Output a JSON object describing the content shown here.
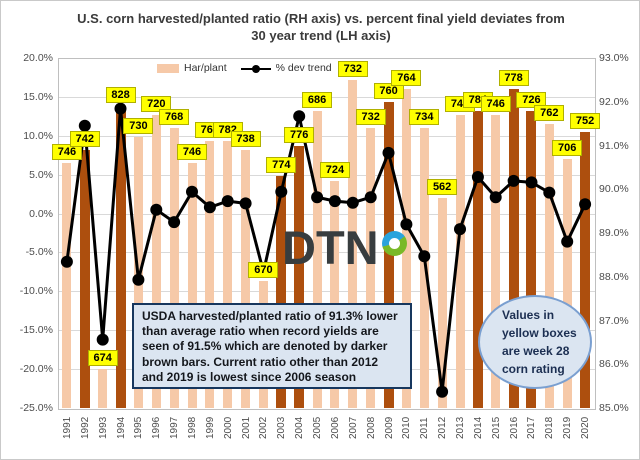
{
  "title": {
    "line1": "U.S. corn harvested/planted ratio (RH axis) vs. percent final yield deviates from",
    "line2": "30 year trend (LH axis)"
  },
  "legend": {
    "bar_label": "Har/plant",
    "line_label": "% dev trend"
  },
  "annotations": {
    "note_box": "USDA harvested/planted ratio of 91.3% lower than average ratio when record yields are seen of 91.5% which are denoted by darker brown bars. Current ratio other than 2012 and 2019 is lowest since 2006 season",
    "ellipse_note": "Values in yellow boxes are week 28 corn rating",
    "logo_text": "DTN",
    "logo_ring_icon": "dtn-degree-ring"
  },
  "colors": {
    "bar_light": "#f6c9a8",
    "bar_dark": "#ad4f0e",
    "line": "#000000",
    "rating_label_bg": "#ffff00",
    "rating_label_border": "#b0b000",
    "note_fill": "#dbe5f1",
    "note_border": "#17375e",
    "ellipse_border": "#7a9fd0",
    "gridline": "#d9d9d9",
    "logo_blue": "#2aa3dc",
    "logo_green": "#79b928"
  },
  "chart_data": {
    "type": "bar+line combo",
    "categories": [
      1991,
      1992,
      1993,
      1994,
      1995,
      1996,
      1997,
      1998,
      1999,
      2000,
      2001,
      2002,
      2003,
      2004,
      2005,
      2006,
      2007,
      2008,
      2009,
      2010,
      2011,
      2012,
      2013,
      2014,
      2015,
      2016,
      2017,
      2018,
      2019,
      2020
    ],
    "series": [
      {
        "name": "Har/plant",
        "type": "bar",
        "axis": "right",
        "unit": "%",
        "values": [
          90.6,
          90.9,
          85.9,
          91.9,
          91.2,
          91.7,
          91.4,
          90.6,
          91.1,
          91.1,
          90.9,
          87.9,
          90.3,
          91.0,
          91.8,
          90.2,
          92.5,
          91.4,
          92.0,
          92.3,
          91.4,
          89.8,
          91.7,
          91.8,
          91.7,
          92.3,
          91.8,
          91.5,
          90.7,
          91.3
        ],
        "record_yield_years": [
          1992,
          1994,
          2003,
          2004,
          2009,
          2014,
          2016,
          2017,
          2020
        ]
      },
      {
        "name": "% dev trend",
        "type": "line",
        "axis": "left",
        "unit": "%",
        "values": [
          -6.2,
          11.3,
          -16.2,
          13.5,
          -8.5,
          0.5,
          -1.1,
          2.8,
          0.8,
          1.6,
          1.3,
          -7.5,
          2.8,
          12.5,
          2.1,
          1.6,
          1.4,
          2.1,
          7.8,
          -1.4,
          -5.5,
          -22.9,
          -2.0,
          4.7,
          2.1,
          4.2,
          4.0,
          2.7,
          -3.6,
          1.2
        ]
      }
    ],
    "point_labels": {
      "name": "week 28 corn rating",
      "values": [
        746,
        742,
        674,
        828,
        730,
        720,
        768,
        746,
        766,
        782,
        738,
        670,
        774,
        776,
        686,
        724,
        732,
        732,
        760,
        764,
        734,
        562,
        742,
        784,
        746,
        778,
        726,
        762,
        706,
        752
      ]
    },
    "left_axis": {
      "min": -25,
      "max": 20,
      "ticks": [
        "20.0%",
        "15.0%",
        "10.0%",
        "5.0%",
        "0.0%",
        "-5.0%",
        "-10.0%",
        "-15.0%",
        "-20.0%",
        "-25.0%"
      ]
    },
    "right_axis": {
      "min": 85,
      "max": 93,
      "ticks": [
        "93.0%",
        "92.0%",
        "91.0%",
        "90.0%",
        "89.0%",
        "88.0%",
        "87.0%",
        "86.0%",
        "85.0%"
      ]
    },
    "grid": "horizontal, 5% steps of left axis",
    "legend_position": "top inside, left of center"
  }
}
